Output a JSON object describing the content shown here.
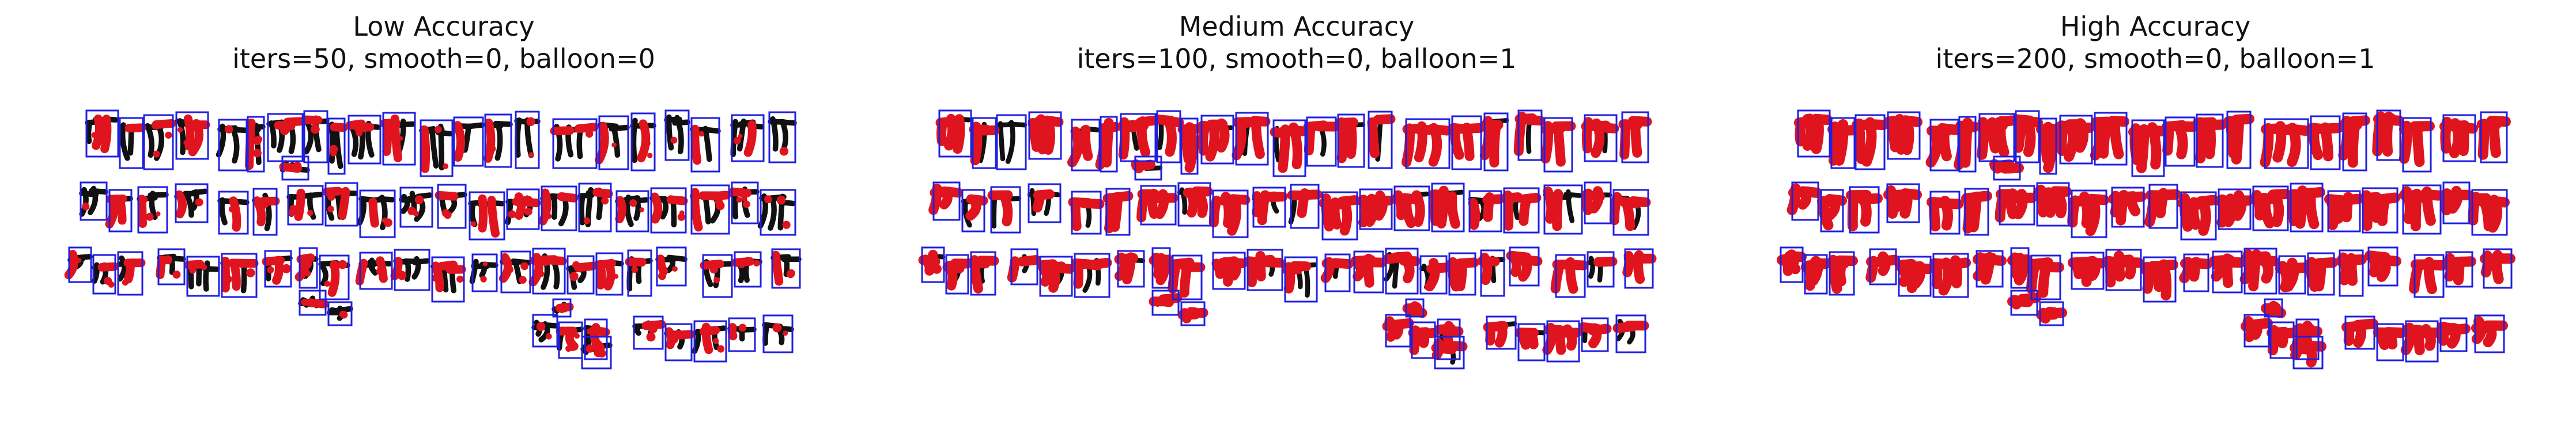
{
  "panels": [
    {
      "id": "low",
      "title": "Low Accuracy",
      "params": "iters=50, smooth=0, balloon=0",
      "level": 0.25
    },
    {
      "id": "medium",
      "title": "Medium Accuracy",
      "params": "iters=100, smooth=0, balloon=1",
      "level": 0.75
    },
    {
      "id": "high",
      "title": "High Accuracy",
      "params": "iters=200, smooth=0, balloon=1",
      "level": 1.0
    }
  ],
  "colors": {
    "glyph": "#111111",
    "contour": "#e0141e",
    "box": "#1f1fe0",
    "background": "#ffffff"
  }
}
